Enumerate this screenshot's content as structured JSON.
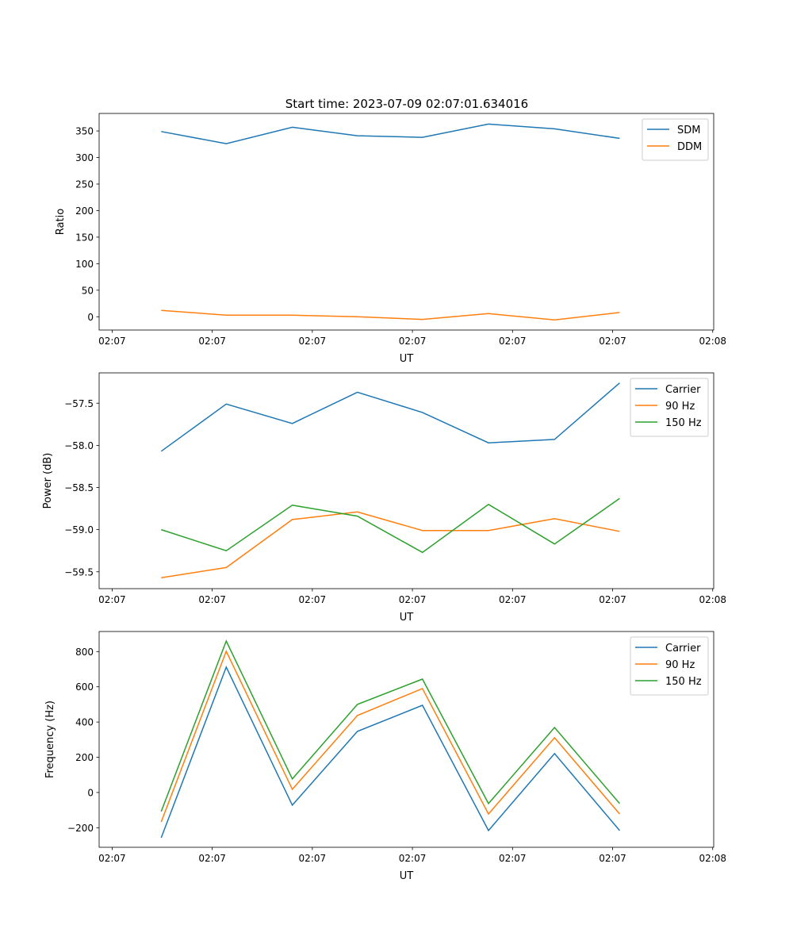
{
  "figure_title": "Start time: 2023-07-09 02:07:01.634016",
  "colors": {
    "blue": "#1f77b4",
    "orange": "#ff7f0e",
    "green": "#2ca02c"
  },
  "chart_data": [
    {
      "type": "line",
      "title": "Start time: 2023-07-09 02:07:01.634016",
      "xlabel": "UT",
      "ylabel": "Ratio",
      "x_unit": "seconds after 02:07:00",
      "x": [
        4.9,
        11.4,
        18.0,
        24.5,
        31.0,
        37.6,
        44.2,
        50.7
      ],
      "xlim": [
        -1.3,
        60.1
      ],
      "ylim": [
        -25,
        383
      ],
      "xticks": [
        0,
        10,
        20,
        30,
        40,
        50,
        60
      ],
      "xtick_labels": [
        "02:07",
        "02:07",
        "02:07",
        "02:07",
        "02:07",
        "02:07",
        "02:08"
      ],
      "yticks": [
        0,
        50,
        100,
        150,
        200,
        250,
        300,
        350
      ],
      "ytick_labels": [
        "0",
        "50",
        "100",
        "150",
        "200",
        "250",
        "300",
        "350"
      ],
      "legend": "top-right",
      "grid": false,
      "series": [
        {
          "name": "SDM",
          "color": "#1f77b4",
          "values": [
            349,
            326,
            357,
            341,
            338,
            363,
            354,
            336
          ]
        },
        {
          "name": "DDM",
          "color": "#ff7f0e",
          "values": [
            12,
            3,
            3,
            0,
            -5,
            6,
            -6,
            8
          ]
        }
      ]
    },
    {
      "type": "line",
      "title": "",
      "xlabel": "UT",
      "ylabel": "Power (dB)",
      "x_unit": "seconds after 02:07:00",
      "x": [
        4.9,
        11.4,
        18.0,
        24.5,
        31.0,
        37.6,
        44.2,
        50.7
      ],
      "xlim": [
        -1.3,
        60.1
      ],
      "ylim": [
        -59.7,
        -57.14
      ],
      "xticks": [
        0,
        10,
        20,
        30,
        40,
        50,
        60
      ],
      "xtick_labels": [
        "02:07",
        "02:07",
        "02:07",
        "02:07",
        "02:07",
        "02:07",
        "02:08"
      ],
      "yticks": [
        -59.5,
        -59.0,
        -58.5,
        -58.0,
        -57.5
      ],
      "ytick_labels": [
        "−59.5",
        "−59.0",
        "−58.5",
        "−58.0",
        "−57.5"
      ],
      "legend": "top-right",
      "grid": false,
      "series": [
        {
          "name": "Carrier",
          "color": "#1f77b4",
          "values": [
            -58.07,
            -57.51,
            -57.74,
            -57.37,
            -57.61,
            -57.97,
            -57.93,
            -57.26
          ]
        },
        {
          "name": "90 Hz",
          "color": "#ff7f0e",
          "values": [
            -59.57,
            -59.45,
            -58.88,
            -58.79,
            -59.01,
            -59.01,
            -58.87,
            -59.02
          ]
        },
        {
          "name": "150 Hz",
          "color": "#2ca02c",
          "values": [
            -59.0,
            -59.25,
            -58.71,
            -58.84,
            -59.27,
            -58.7,
            -59.17,
            -58.63
          ]
        }
      ]
    },
    {
      "type": "line",
      "title": "",
      "xlabel": "UT",
      "ylabel": "Frequency (Hz)",
      "x_unit": "seconds after 02:07:00",
      "x": [
        4.9,
        11.4,
        18.0,
        24.5,
        31.0,
        37.6,
        44.2,
        50.7
      ],
      "xlim": [
        -1.3,
        60.1
      ],
      "ylim": [
        -311,
        914
      ],
      "xticks": [
        0,
        10,
        20,
        30,
        40,
        50,
        60
      ],
      "xtick_labels": [
        "02:07",
        "02:07",
        "02:07",
        "02:07",
        "02:07",
        "02:07",
        "02:08"
      ],
      "yticks": [
        -200,
        0,
        200,
        400,
        600,
        800
      ],
      "ytick_labels": [
        "−200",
        "0",
        "200",
        "400",
        "600",
        "800"
      ],
      "legend": "top-right",
      "grid": false,
      "series": [
        {
          "name": "Carrier",
          "color": "#1f77b4",
          "values": [
            -257,
            712,
            -72,
            347,
            495,
            -216,
            221,
            -216
          ]
        },
        {
          "name": "90 Hz",
          "color": "#ff7f0e",
          "values": [
            -167,
            802,
            18,
            437,
            590,
            -122,
            311,
            -122
          ]
        },
        {
          "name": "150 Hz",
          "color": "#2ca02c",
          "values": [
            -108,
            860,
            77,
            500,
            644,
            -63,
            369,
            -63
          ]
        }
      ]
    }
  ]
}
